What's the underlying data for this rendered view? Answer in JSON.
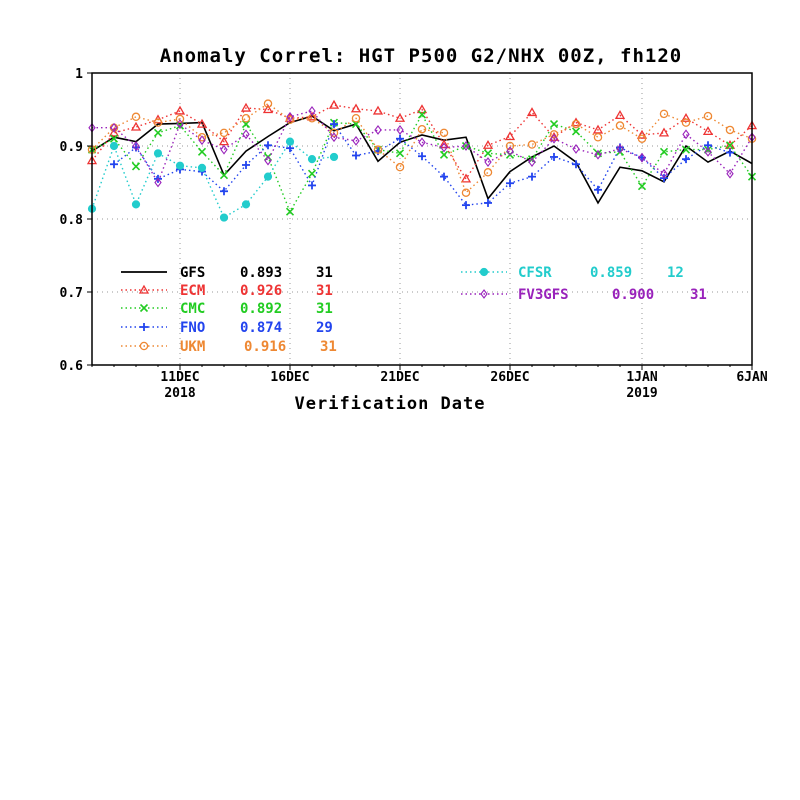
{
  "chart_data": {
    "type": "line",
    "title": "Anomaly Correl: HGT P500 G2/NHX 00Z, fh120",
    "xlabel": "Verification Date",
    "ylabel": "",
    "x_start": "2018-12-07",
    "x_end": "2019-01-06",
    "ylim": [
      0.6,
      1.0
    ],
    "yticks": [
      0.6,
      0.7,
      0.8,
      0.9,
      1.0
    ],
    "ytick_labels": [
      "0.6",
      "0.7",
      "0.8",
      "0.9",
      "1"
    ],
    "grid": true,
    "xticks": [
      {
        "date": "2018-12-11",
        "label": "11DEC",
        "sublabel": "2018"
      },
      {
        "date": "2018-12-16",
        "label": "16DEC",
        "sublabel": ""
      },
      {
        "date": "2018-12-21",
        "label": "21DEC",
        "sublabel": ""
      },
      {
        "date": "2018-12-26",
        "label": "26DEC",
        "sublabel": ""
      },
      {
        "date": "2019-01-01",
        "label": "1JAN",
        "sublabel": "2019"
      },
      {
        "date": "2019-01-06",
        "label": "6JAN",
        "sublabel": ""
      }
    ],
    "series": [
      {
        "name": "GFS",
        "mean": "0.893",
        "count": "31",
        "color": "#000000",
        "marker": "none",
        "dash": "solid",
        "x": [
          "2018-12-07",
          "2018-12-08",
          "2018-12-09",
          "2018-12-10",
          "2018-12-11",
          "2018-12-12",
          "2018-12-13",
          "2018-12-14",
          "2018-12-15",
          "2018-12-16",
          "2018-12-17",
          "2018-12-18",
          "2018-12-19",
          "2018-12-20",
          "2018-12-21",
          "2018-12-22",
          "2018-12-23",
          "2018-12-24",
          "2018-12-25",
          "2018-12-26",
          "2018-12-27",
          "2018-12-28",
          "2018-12-29",
          "2018-12-30",
          "2018-12-31",
          "2019-01-01",
          "2019-01-02",
          "2019-01-03",
          "2019-01-04",
          "2019-01-05",
          "2019-01-06"
        ],
        "y": [
          0.893,
          0.912,
          0.906,
          0.93,
          0.931,
          0.932,
          0.86,
          0.893,
          0.913,
          0.932,
          0.941,
          0.921,
          0.93,
          0.879,
          0.905,
          0.915,
          0.908,
          0.912,
          0.828,
          0.865,
          0.885,
          0.9,
          0.878,
          0.822,
          0.871,
          0.866,
          0.851,
          0.9,
          0.878,
          0.893,
          0.876
        ]
      },
      {
        "name": "ECM",
        "mean": "0.926",
        "count": "31",
        "color": "#ee3333",
        "marker": "triangle",
        "dash": "dotted",
        "x": [
          "2018-12-07",
          "2018-12-08",
          "2018-12-09",
          "2018-12-10",
          "2018-12-11",
          "2018-12-12",
          "2018-12-13",
          "2018-12-14",
          "2018-12-15",
          "2018-12-16",
          "2018-12-17",
          "2018-12-18",
          "2018-12-19",
          "2018-12-20",
          "2018-12-21",
          "2018-12-22",
          "2018-12-23",
          "2018-12-24",
          "2018-12-25",
          "2018-12-26",
          "2018-12-27",
          "2018-12-28",
          "2018-12-29",
          "2018-12-30",
          "2018-12-31",
          "2019-01-01",
          "2019-01-02",
          "2019-01-03",
          "2019-01-04",
          "2019-01-05",
          "2019-01-06"
        ],
        "y": [
          0.88,
          0.918,
          0.926,
          0.936,
          0.948,
          0.93,
          0.906,
          0.952,
          0.95,
          0.938,
          0.94,
          0.956,
          0.951,
          0.948,
          0.938,
          0.95,
          0.902,
          0.855,
          0.901,
          0.913,
          0.946,
          0.912,
          0.932,
          0.922,
          0.942,
          0.915,
          0.918,
          0.938,
          0.92,
          0.901,
          0.928
        ]
      },
      {
        "name": "CMC",
        "mean": "0.892",
        "count": "31",
        "color": "#22cc22",
        "marker": "x",
        "dash": "dotted",
        "x": [
          "2018-12-07",
          "2018-12-08",
          "2018-12-09",
          "2018-12-10",
          "2018-12-11",
          "2018-12-12",
          "2018-12-13",
          "2018-12-14",
          "2018-12-15",
          "2018-12-16",
          "2018-12-17",
          "2018-12-18",
          "2018-12-19",
          "2018-12-20",
          "2018-12-21",
          "2018-12-22",
          "2018-12-23",
          "2018-12-24",
          "2018-12-25",
          "2018-12-26",
          "2018-12-27",
          "2018-12-28",
          "2018-12-29",
          "2018-12-30",
          "2018-12-31",
          "2019-01-01",
          "2019-01-02",
          "2019-01-03",
          "2019-01-04",
          "2019-01-05",
          "2019-01-06"
        ],
        "y": [
          0.895,
          0.91,
          0.872,
          0.918,
          0.928,
          0.892,
          0.86,
          0.93,
          0.885,
          0.81,
          0.862,
          0.932,
          0.93,
          0.895,
          0.89,
          0.943,
          0.888,
          0.9,
          0.89,
          0.888,
          0.882,
          0.93,
          0.92,
          0.89,
          0.892,
          0.845,
          0.892,
          0.895,
          0.895,
          0.901,
          0.858
        ]
      },
      {
        "name": "FNO",
        "mean": "0.874",
        "count": "29",
        "color": "#2244ee",
        "marker": "plus",
        "dash": "dotted",
        "x": [
          "2018-12-08",
          "2018-12-09",
          "2018-12-10",
          "2018-12-11",
          "2018-12-12",
          "2018-12-13",
          "2018-12-14",
          "2018-12-15",
          "2018-12-16",
          "2018-12-17",
          "2018-12-18",
          "2018-12-19",
          "2018-12-20",
          "2018-12-21",
          "2018-12-22",
          "2018-12-23",
          "2018-12-24",
          "2018-12-25",
          "2018-12-26",
          "2018-12-27",
          "2018-12-28",
          "2018-12-29",
          "2018-12-30",
          "2018-12-31",
          "2019-01-01",
          "2019-01-02",
          "2019-01-03",
          "2019-01-04",
          "2019-01-05"
        ],
        "y": [
          0.875,
          0.898,
          0.855,
          0.868,
          0.865,
          0.838,
          0.874,
          0.901,
          0.897,
          0.846,
          0.93,
          0.887,
          0.893,
          0.91,
          0.886,
          0.858,
          0.819,
          0.822,
          0.849,
          0.858,
          0.885,
          0.875,
          0.84,
          0.898,
          0.884,
          0.856,
          0.882,
          0.901,
          0.891
        ]
      },
      {
        "name": "UKM",
        "mean": "0.916",
        "count": "31",
        "color": "#ee8833",
        "marker": "circle",
        "dash": "dotted",
        "x": [
          "2018-12-07",
          "2018-12-08",
          "2018-12-09",
          "2018-12-10",
          "2018-12-11",
          "2018-12-12",
          "2018-12-13",
          "2018-12-14",
          "2018-12-15",
          "2018-12-16",
          "2018-12-17",
          "2018-12-18",
          "2018-12-19",
          "2018-12-20",
          "2018-12-21",
          "2018-12-22",
          "2018-12-23",
          "2018-12-24",
          "2018-12-25",
          "2018-12-26",
          "2018-12-27",
          "2018-12-28",
          "2018-12-29",
          "2018-12-30",
          "2018-12-31",
          "2019-01-01",
          "2019-01-02",
          "2019-01-03",
          "2019-01-04",
          "2019-01-05",
          "2019-01-06"
        ],
        "y": [
          0.895,
          0.925,
          0.94,
          0.932,
          0.937,
          0.912,
          0.918,
          0.938,
          0.958,
          0.936,
          0.938,
          0.918,
          0.938,
          0.895,
          0.871,
          0.923,
          0.918,
          0.836,
          0.864,
          0.9,
          0.902,
          0.916,
          0.93,
          0.912,
          0.928,
          0.91,
          0.944,
          0.932,
          0.941,
          0.922,
          0.91
        ]
      },
      {
        "name": "CFSR",
        "mean": "0.859",
        "count": "12",
        "color": "#22cccc",
        "marker": "dot",
        "dash": "dotted",
        "x": [
          "2018-12-07",
          "2018-12-08",
          "2018-12-09",
          "2018-12-10",
          "2018-12-11",
          "2018-12-12",
          "2018-12-13",
          "2018-12-14",
          "2018-12-15",
          "2018-12-16",
          "2018-12-17",
          "2018-12-18"
        ],
        "y": [
          0.814,
          0.9,
          0.82,
          0.89,
          0.873,
          0.87,
          0.802,
          0.82,
          0.858,
          0.906,
          0.882,
          0.885
        ]
      },
      {
        "name": "FV3GFS",
        "mean": "0.900",
        "count": "31",
        "color": "#9922bb",
        "marker": "diamond",
        "dash": "dotted",
        "x": [
          "2018-12-07",
          "2018-12-08",
          "2018-12-09",
          "2018-12-10",
          "2018-12-11",
          "2018-12-12",
          "2018-12-13",
          "2018-12-14",
          "2018-12-15",
          "2018-12-16",
          "2018-12-17",
          "2018-12-18",
          "2018-12-19",
          "2018-12-20",
          "2018-12-21",
          "2018-12-22",
          "2018-12-23",
          "2018-12-24",
          "2018-12-25",
          "2018-12-26",
          "2018-12-27",
          "2018-12-28",
          "2018-12-29",
          "2018-12-30",
          "2018-12-31",
          "2019-01-01",
          "2019-01-02",
          "2019-01-03",
          "2019-01-04",
          "2019-01-05",
          "2019-01-06"
        ],
        "y": [
          0.925,
          0.925,
          0.9,
          0.85,
          0.93,
          0.908,
          0.895,
          0.916,
          0.88,
          0.94,
          0.948,
          0.912,
          0.907,
          0.922,
          0.922,
          0.905,
          0.898,
          0.9,
          0.878,
          0.893,
          0.878,
          0.91,
          0.896,
          0.888,
          0.896,
          0.884,
          0.862,
          0.916,
          0.892,
          0.862,
          0.912
        ]
      }
    ]
  }
}
